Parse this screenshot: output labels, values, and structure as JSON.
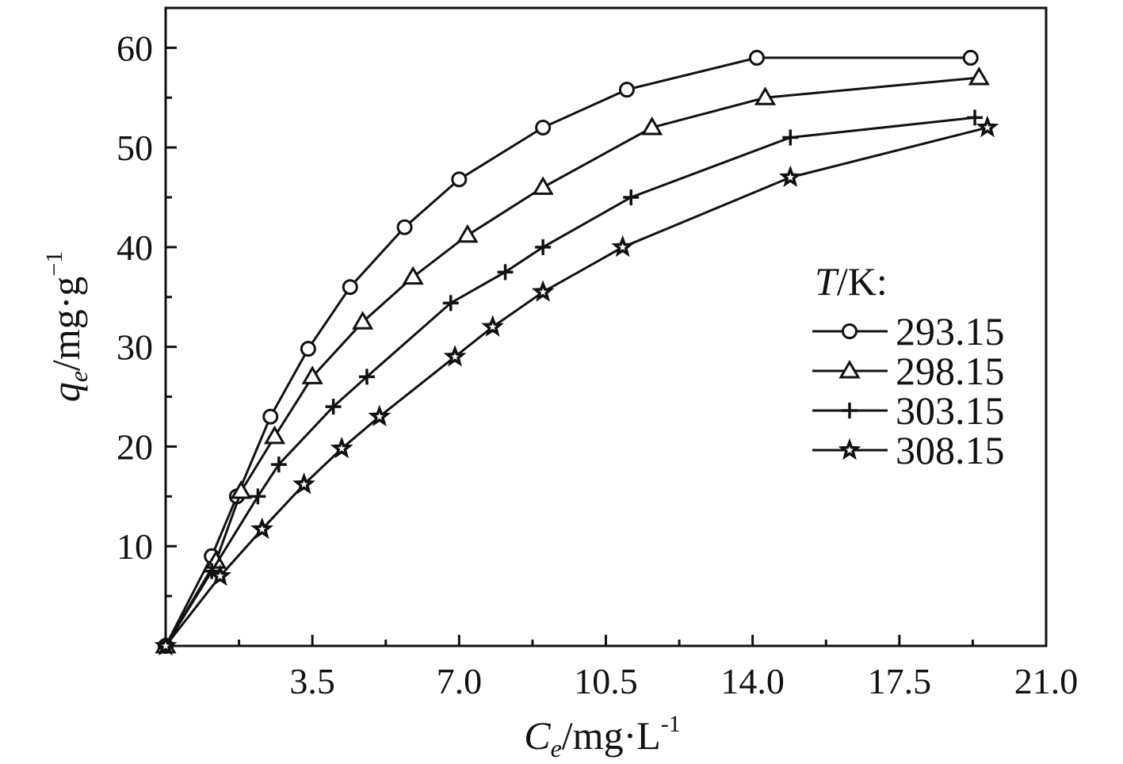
{
  "chart_data": {
    "type": "line",
    "xlabel_main": "C",
    "xlabel_sub": "e",
    "xlabel_unit": "/mg·L",
    "xlabel_exp": "-1",
    "ylabel_main": "q",
    "ylabel_sub": "e",
    "ylabel_unit": "/mg·g",
    "ylabel_exp": "−1",
    "xlim": [
      0,
      21
    ],
    "ylim": [
      0,
      64
    ],
    "x_ticks_major": [
      3.5,
      7.0,
      10.5,
      14.0,
      17.5,
      21.0
    ],
    "x_tick_labels": [
      "3.5",
      "7.0",
      "10.5",
      "14.0",
      "17.5",
      "21.0"
    ],
    "x_ticks_minor": [
      1.75,
      5.25,
      8.75,
      12.25,
      15.75,
      19.25
    ],
    "y_ticks_major": [
      10,
      20,
      30,
      40,
      50,
      60
    ],
    "y_tick_labels": [
      "10",
      "20",
      "30",
      "40",
      "50",
      "60"
    ],
    "y_ticks_minor": [
      5,
      15,
      25,
      35,
      45,
      55
    ],
    "legend_title_italic": "T",
    "legend_title_rest": "/K:",
    "legend_position": "right",
    "series": [
      {
        "name": "293.15",
        "marker": "circle",
        "x": [
          0,
          1.1,
          1.7,
          2.5,
          3.4,
          4.4,
          5.7,
          7.0,
          9.0,
          11.0,
          14.1,
          19.2
        ],
        "y": [
          0,
          9,
          15,
          23,
          29.8,
          36,
          42,
          46.8,
          52,
          55.8,
          59,
          59
        ]
      },
      {
        "name": "298.15",
        "marker": "triangle",
        "x": [
          0,
          1.2,
          1.8,
          2.6,
          3.5,
          4.7,
          5.9,
          7.2,
          9.0,
          11.6,
          14.3,
          19.4
        ],
        "y": [
          0,
          8.5,
          15.5,
          21,
          27,
          32.5,
          37,
          41.2,
          46,
          52,
          55,
          57
        ]
      },
      {
        "name": "303.15",
        "marker": "plus",
        "x": [
          0,
          1.1,
          2.2,
          2.7,
          4.0,
          4.8,
          6.8,
          8.1,
          9.0,
          11.1,
          14.9,
          19.3
        ],
        "y": [
          0,
          7.5,
          15,
          18.2,
          24,
          27,
          34.4,
          37.5,
          40,
          45,
          51,
          53
        ]
      },
      {
        "name": "308.15",
        "marker": "star",
        "x": [
          0,
          1.3,
          2.3,
          3.3,
          4.2,
          5.1,
          6.9,
          7.8,
          9.0,
          10.9,
          14.9,
          19.6
        ],
        "y": [
          0,
          7,
          11.7,
          16.2,
          19.8,
          23,
          29,
          32,
          35.5,
          40,
          47,
          52
        ]
      }
    ]
  }
}
